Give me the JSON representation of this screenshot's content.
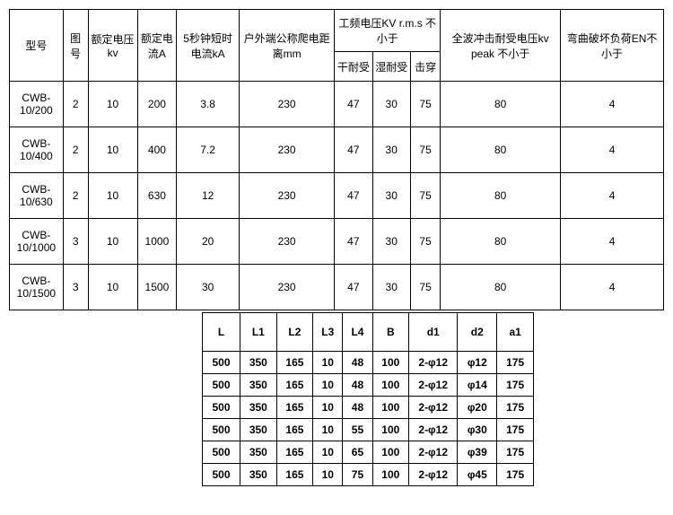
{
  "table1": {
    "headers": {
      "model": "型号",
      "fig": "图号",
      "volt": "额定电压 kv",
      "curr": "额定电流A",
      "short": "5秒钟短时电流kA",
      "creep": "户外端公称爬电距离mm",
      "freq_group": "工频电压KV r.m.s 不小于",
      "dry": "干耐受",
      "wet": "湿耐受",
      "punc": "击穿",
      "impulse": "全波冲击耐受电压kv peak 不小于",
      "bend": "弯曲破坏负荷EN不小于"
    },
    "rows": [
      {
        "model": "CWB-10/200",
        "fig": "2",
        "volt": "10",
        "curr": "200",
        "short": "3.8",
        "creep": "230",
        "dry": "47",
        "wet": "30",
        "punc": "75",
        "impulse": "80",
        "bend": "4"
      },
      {
        "model": "CWB-10/400",
        "fig": "2",
        "volt": "10",
        "curr": "400",
        "short": "7.2",
        "creep": "230",
        "dry": "47",
        "wet": "30",
        "punc": "75",
        "impulse": "80",
        "bend": "4"
      },
      {
        "model": "CWB-10/630",
        "fig": "2",
        "volt": "10",
        "curr": "630",
        "short": "12",
        "creep": "230",
        "dry": "47",
        "wet": "30",
        "punc": "75",
        "impulse": "80",
        "bend": "4"
      },
      {
        "model": "CWB-10/1000",
        "fig": "3",
        "volt": "10",
        "curr": "1000",
        "short": "20",
        "creep": "230",
        "dry": "47",
        "wet": "30",
        "punc": "75",
        "impulse": "80",
        "bend": "4"
      },
      {
        "model": "CWB-10/1500",
        "fig": "3",
        "volt": "10",
        "curr": "1500",
        "short": "30",
        "creep": "230",
        "dry": "47",
        "wet": "30",
        "punc": "75",
        "impulse": "80",
        "bend": "4"
      }
    ]
  },
  "table2": {
    "headers": {
      "L": "L",
      "L1": "L1",
      "L2": "L2",
      "L3": "L3",
      "L4": "L4",
      "B": "B",
      "d1": "d1",
      "d2": "d2",
      "a1": "a1"
    },
    "rows": [
      {
        "L": "500",
        "L1": "350",
        "L2": "165",
        "L3": "10",
        "L4": "48",
        "B": "100",
        "d1": "2-φ12",
        "d2": "φ12",
        "a1": "175"
      },
      {
        "L": "500",
        "L1": "350",
        "L2": "165",
        "L3": "10",
        "L4": "48",
        "B": "100",
        "d1": "2-φ12",
        "d2": "φ14",
        "a1": "175"
      },
      {
        "L": "500",
        "L1": "350",
        "L2": "165",
        "L3": "10",
        "L4": "48",
        "B": "100",
        "d1": "2-φ12",
        "d2": "φ20",
        "a1": "175"
      },
      {
        "L": "500",
        "L1": "350",
        "L2": "165",
        "L3": "10",
        "L4": "55",
        "B": "100",
        "d1": "2-φ12",
        "d2": "φ30",
        "a1": "175"
      },
      {
        "L": "500",
        "L1": "350",
        "L2": "165",
        "L3": "10",
        "L4": "65",
        "B": "100",
        "d1": "2-φ12",
        "d2": "φ39",
        "a1": "175"
      },
      {
        "L": "500",
        "L1": "350",
        "L2": "165",
        "L3": "10",
        "L4": "75",
        "B": "100",
        "d1": "2-φ12",
        "d2": "φ45",
        "a1": "175"
      }
    ]
  },
  "style": {
    "border_color": "#000000",
    "background": "#ffffff",
    "font_family": "Arial, Microsoft YaHei, sans-serif",
    "table1_font_size": 12,
    "table2_font_size": 12,
    "table2_font_weight": "bold"
  }
}
